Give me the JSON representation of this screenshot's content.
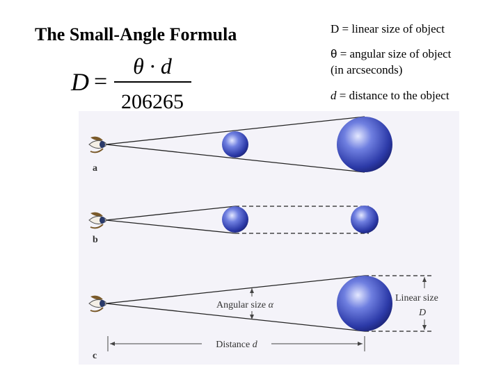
{
  "title": "The Small-Angle Formula",
  "formula": {
    "lhs": "D",
    "equals": "=",
    "numerator": "θ · d",
    "denominator": "206265"
  },
  "definitions": [
    {
      "symbol": "D",
      "text": "= linear size of object"
    },
    {
      "symbol": "θ",
      "text": "= angular size of object",
      "note": "(in arcseconds)"
    },
    {
      "symbol": "d",
      "text": "= distance to the object"
    }
  ],
  "figure": {
    "panels": [
      {
        "label": "a"
      },
      {
        "label": "b"
      },
      {
        "label": "c"
      }
    ],
    "angular_size_label": "Angular size",
    "angular_size_symbol": "α",
    "linear_size_label": "Linear size",
    "linear_size_symbol": "D",
    "distance_label": "Distance",
    "distance_symbol": "d"
  }
}
